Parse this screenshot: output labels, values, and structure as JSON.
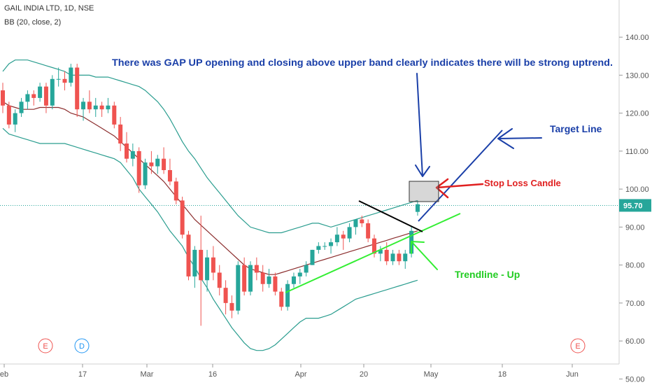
{
  "header": {
    "symbol_line": "GAIL INDIA LTD, 1D, NSE",
    "indicator_line": "BB (20, close, 2)"
  },
  "chart_data": {
    "type": "candlestick",
    "ylim": [
      50,
      145
    ],
    "y_ticks": [
      "140.00",
      "130.00",
      "120.00",
      "110.00",
      "100.00",
      "90.00",
      "80.00",
      "70.00",
      "60.00",
      "50.00"
    ],
    "y_tick_values": [
      140,
      130,
      120,
      110,
      100,
      90,
      80,
      70,
      60,
      50
    ],
    "x_ticks": [
      "eb",
      "17",
      "Mar",
      "16",
      "Apr",
      "20",
      "May",
      "18",
      "Jun"
    ],
    "last_price_label": "95.70",
    "last_price": 95.7,
    "event_markers": [
      "E",
      "D",
      "E"
    ],
    "colors": {
      "up": "#26a69a",
      "down": "#ef5350",
      "basis": "#8b2d2d",
      "bands": "#2a9d8f",
      "price_line": "#26a69a"
    },
    "candles": [
      [
        126,
        128,
        120,
        122
      ],
      [
        122,
        123,
        116,
        117
      ],
      [
        117,
        121,
        115,
        120
      ],
      [
        120,
        124,
        119,
        123
      ],
      [
        123,
        126,
        121,
        125
      ],
      [
        125,
        126,
        122,
        124
      ],
      [
        124,
        128,
        123,
        127
      ],
      [
        127,
        128,
        120,
        122
      ],
      [
        122,
        130,
        121,
        129
      ],
      [
        129,
        132,
        127,
        129
      ],
      [
        129,
        131,
        126,
        128
      ],
      [
        128,
        133,
        127,
        132
      ],
      [
        132,
        133,
        119,
        121
      ],
      [
        121,
        124,
        118,
        123
      ],
      [
        123,
        126,
        120,
        121
      ],
      [
        121,
        124,
        119,
        122
      ],
      [
        122,
        123,
        119,
        121
      ],
      [
        121,
        124,
        120,
        122
      ],
      [
        122,
        123,
        116,
        117
      ],
      [
        117,
        119,
        110,
        112
      ],
      [
        112,
        115,
        107,
        108
      ],
      [
        108,
        112,
        106,
        110
      ],
      [
        110,
        111,
        99,
        101
      ],
      [
        101,
        108,
        100,
        107
      ],
      [
        107,
        110,
        104,
        106
      ],
      [
        106,
        109,
        104,
        108
      ],
      [
        108,
        111,
        104,
        105
      ],
      [
        105,
        108,
        101,
        102
      ],
      [
        102,
        103,
        96,
        97
      ],
      [
        97,
        98,
        87,
        88
      ],
      [
        88,
        89,
        76,
        77
      ],
      [
        77,
        85,
        74,
        84
      ],
      [
        84,
        93,
        64,
        76
      ],
      [
        76,
        84,
        73,
        82
      ],
      [
        82,
        85,
        76,
        78
      ],
      [
        78,
        80,
        72,
        74
      ],
      [
        74,
        76,
        67,
        70
      ],
      [
        70,
        72,
        66,
        68
      ],
      [
        68,
        81,
        67,
        80
      ],
      [
        80,
        82,
        72,
        73
      ],
      [
        73,
        81,
        72,
        80
      ],
      [
        80,
        82,
        76,
        78
      ],
      [
        78,
        80,
        73,
        75
      ],
      [
        75,
        79,
        74,
        77
      ],
      [
        77,
        78,
        72,
        73
      ],
      [
        73,
        74,
        68,
        69
      ],
      [
        69,
        76,
        68,
        75
      ],
      [
        75,
        78,
        74,
        77
      ],
      [
        77,
        79,
        75,
        78
      ],
      [
        78,
        81,
        77,
        80
      ],
      [
        80,
        84,
        80,
        84
      ],
      [
        84,
        86,
        83,
        85
      ],
      [
        85,
        86,
        84,
        85
      ],
      [
        85,
        87,
        83,
        86
      ],
      [
        86,
        90,
        85,
        88
      ],
      [
        88,
        89,
        84,
        87
      ],
      [
        87,
        91,
        86,
        90
      ],
      [
        90,
        92,
        88,
        92
      ],
      [
        92,
        93,
        90,
        91
      ],
      [
        91,
        92,
        86,
        87
      ],
      [
        87,
        88,
        82,
        83
      ],
      [
        83,
        85,
        81,
        84
      ],
      [
        84,
        86,
        80,
        81
      ],
      [
        81,
        84,
        80,
        83
      ],
      [
        83,
        84,
        80,
        81
      ],
      [
        81,
        84,
        79,
        83
      ],
      [
        83,
        90,
        82,
        89
      ],
      [
        94,
        97,
        93,
        96
      ]
    ],
    "bb_basis": [
      123,
      122,
      121.5,
      121,
      121,
      121,
      121.5,
      121.5,
      121.5,
      121.5,
      121,
      120,
      119.5,
      119,
      118,
      117,
      116,
      115,
      114,
      112.5,
      111,
      109.5,
      108,
      106.5,
      105,
      103.5,
      102,
      100,
      98,
      96,
      94,
      92,
      90.5,
      89,
      87.5,
      86,
      84.5,
      83,
      81.5,
      80,
      79,
      78.5,
      78,
      77.5,
      77.5,
      78,
      78.5,
      79,
      79.5,
      80,
      80.5,
      81,
      81.5,
      82,
      82.5,
      83,
      83.5,
      84,
      84.5,
      85,
      85.5,
      86,
      86.5,
      87,
      87.5,
      88,
      88.5,
      89
    ],
    "bb_upper": [
      131,
      133,
      134,
      134,
      134,
      133.5,
      133,
      132.5,
      132,
      131.5,
      131,
      130,
      130,
      130,
      130,
      129.5,
      129.5,
      129.5,
      129,
      128.5,
      128,
      127.5,
      127,
      126,
      124.5,
      123,
      121,
      118.5,
      115.5,
      112.5,
      110,
      108,
      105.5,
      103,
      101,
      99,
      97,
      95,
      93,
      91.5,
      90,
      89.5,
      89,
      88.5,
      88.5,
      88.5,
      89,
      89.5,
      90,
      90.5,
      91,
      91,
      90.5,
      90,
      90.5,
      91,
      91.5,
      92,
      92.5,
      93,
      93.5,
      94,
      94.5,
      95,
      95.5,
      96,
      96.5,
      97
    ],
    "bb_lower": [
      116,
      114.5,
      114,
      113.5,
      113,
      112.5,
      112,
      112,
      112,
      112,
      112,
      111.5,
      111,
      110.5,
      110,
      109.5,
      109,
      108.5,
      108,
      107,
      105,
      103,
      100,
      98,
      96,
      94,
      91.5,
      89,
      87,
      85,
      82,
      79.5,
      76.5,
      74,
      71,
      68.5,
      66,
      63.5,
      61.5,
      59.5,
      58,
      57.5,
      57.5,
      58,
      59,
      60.5,
      62,
      63.5,
      65,
      66,
      66,
      66,
      66.5,
      67,
      68,
      69,
      70,
      71,
      71.5,
      72,
      72.5,
      73,
      73.5,
      74,
      74.5,
      75,
      75.5,
      76
    ],
    "annotations": [
      {
        "text": "There was GAP UP opening and closing above upper band clearly indicates there will be strong uptrend.",
        "color": "#1a3fa8"
      },
      {
        "text": "Target Line",
        "color": "#1a3fa8"
      },
      {
        "text": "Stop Loss Candle",
        "color": "#e02020"
      },
      {
        "text": "Trendline - Up",
        "color": "#22cc22"
      }
    ]
  }
}
